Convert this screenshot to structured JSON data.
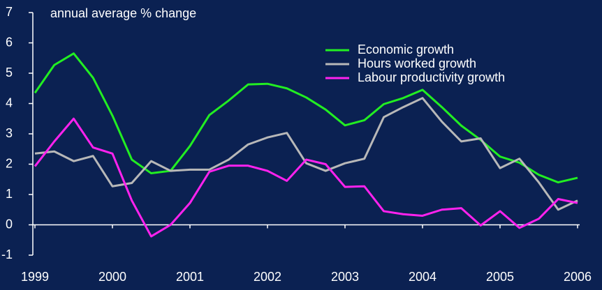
{
  "chart_data": {
    "type": "line",
    "y_label": "annual average % change",
    "x": [
      1999,
      1999.25,
      1999.5,
      1999.75,
      2000,
      2000.25,
      2000.5,
      2000.75,
      2001,
      2001.25,
      2001.5,
      2001.75,
      2002,
      2002.25,
      2002.5,
      2002.75,
      2003,
      2003.25,
      2003.5,
      2003.75,
      2004,
      2004.25,
      2004.5,
      2004.75,
      2005,
      2005.25,
      2005.5,
      2005.75,
      2006
    ],
    "series": [
      {
        "name": "Economic growth",
        "color": "#22ee22",
        "values": [
          4.35,
          5.27,
          5.65,
          4.85,
          3.6,
          2.15,
          1.7,
          1.78,
          2.6,
          3.62,
          4.1,
          4.63,
          4.65,
          4.5,
          4.2,
          3.8,
          3.28,
          3.45,
          3.98,
          4.18,
          4.45,
          3.88,
          3.27,
          2.8,
          2.25,
          2.05,
          1.65,
          1.4,
          1.55
        ]
      },
      {
        "name": "Hours worked growth",
        "color": "#b8b8b8",
        "values": [
          2.35,
          2.42,
          2.1,
          2.27,
          1.27,
          1.38,
          2.1,
          1.78,
          1.82,
          1.82,
          2.15,
          2.65,
          2.88,
          3.03,
          2.03,
          1.78,
          2.03,
          2.18,
          3.55,
          3.88,
          4.18,
          3.4,
          2.75,
          2.85,
          1.87,
          2.18,
          1.4,
          0.5,
          0.8
        ]
      },
      {
        "name": "Labour productivity growth",
        "color": "#ff22ee",
        "values": [
          1.93,
          2.75,
          3.5,
          2.55,
          2.35,
          0.8,
          -0.38,
          0.0,
          0.72,
          1.75,
          1.95,
          1.95,
          1.78,
          1.45,
          2.15,
          2.0,
          1.25,
          1.27,
          0.45,
          0.35,
          0.3,
          0.5,
          0.55,
          -0.02,
          0.45,
          -0.1,
          0.2,
          0.85,
          0.72
        ]
      }
    ],
    "xlim": [
      1999,
      2006
    ],
    "xticks": [
      1999,
      2000,
      2001,
      2002,
      2003,
      2004,
      2005,
      2006
    ],
    "ylim": [
      -1,
      7
    ],
    "yticks": [
      -1,
      0,
      1,
      2,
      3,
      4,
      5,
      6,
      7
    ],
    "legend": "upper right"
  }
}
